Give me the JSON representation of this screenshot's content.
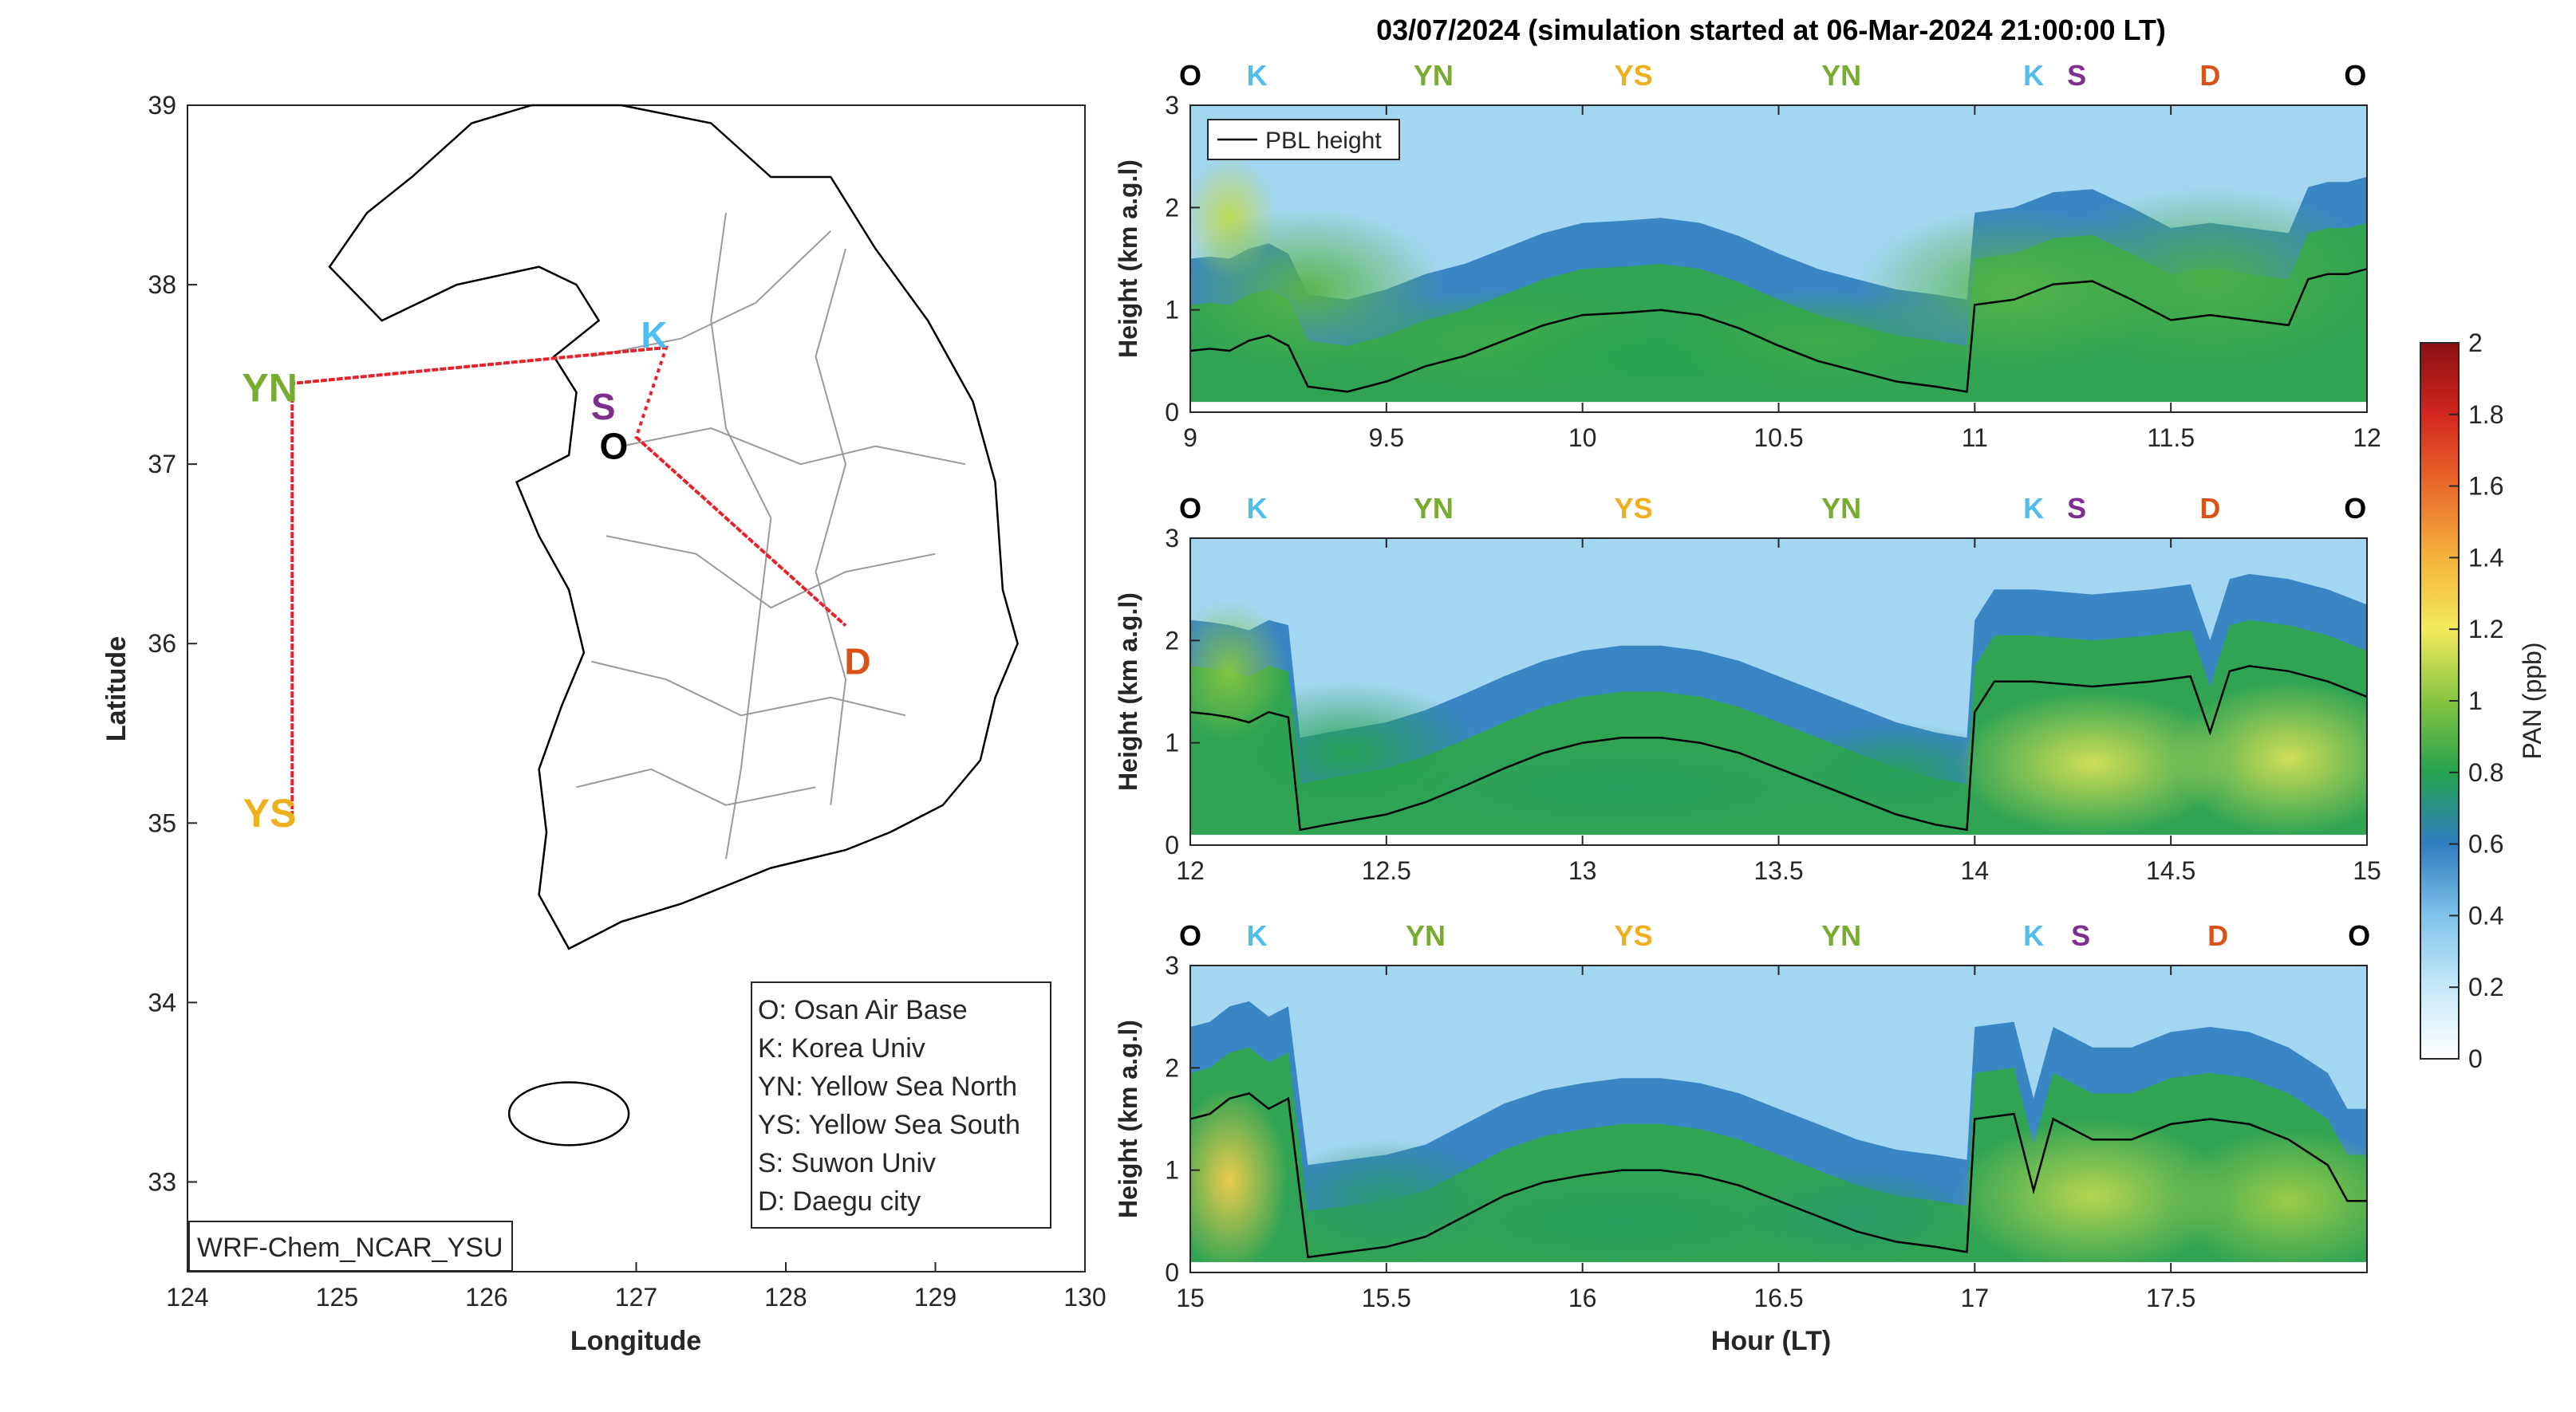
{
  "chart_data": [
    {
      "type": "map",
      "xlabel": "Longitude",
      "ylabel": "Latitude",
      "xlim": [
        124,
        130
      ],
      "ylim": [
        32.5,
        39
      ],
      "x_ticks": [
        "124",
        "125",
        "126",
        "127",
        "128",
        "129",
        "130"
      ],
      "y_ticks": [
        "33",
        "34",
        "35",
        "36",
        "37",
        "38",
        "39"
      ],
      "model_label": "WRF-Chem_NCAR_YSU",
      "sites": [
        {
          "code": "O",
          "lon": 126.85,
          "lat": 37.1,
          "color": "#000000"
        },
        {
          "code": "K",
          "lon": 127.12,
          "lat": 37.72,
          "color": "#4DBEEE"
        },
        {
          "code": "S",
          "lon": 126.78,
          "lat": 37.32,
          "color": "#7E2F8E"
        },
        {
          "code": "YN",
          "lon": 124.55,
          "lat": 37.42,
          "color": "#77AC30"
        },
        {
          "code": "YS",
          "lon": 124.55,
          "lat": 35.05,
          "color": "#EDB120"
        },
        {
          "code": "D",
          "lon": 128.48,
          "lat": 35.9,
          "color": "#D95319"
        }
      ],
      "flight_track": [
        [
          127.2,
          37.65
        ],
        [
          124.7,
          37.45
        ],
        [
          124.7,
          35.05
        ],
        [
          124.7,
          37.45
        ],
        [
          127.2,
          37.65
        ],
        [
          127.0,
          37.15
        ],
        [
          128.4,
          36.1
        ],
        [
          127.0,
          37.15
        ]
      ],
      "legend": [
        "O: Osan Air Base",
        "K: Korea Univ",
        "YN: Yellow Sea North",
        "YS: Yellow Sea South",
        "S: Suwon Univ",
        "D: Daegu city"
      ]
    },
    {
      "type": "heatmap",
      "title": "03/07/2024 (simulation started at 06-Mar-2024 21:00:00 LT)",
      "xlabel": "Hour (LT)",
      "ylabel": "Height (km a.g.l)",
      "ylim": [
        0,
        3
      ],
      "colorbar_label": "PAN (ppb)",
      "colorbar_range": [
        0,
        2
      ],
      "colorbar_ticks": [
        "0",
        "0.2",
        "0.4",
        "0.6",
        "0.8",
        "1",
        "1.2",
        "1.4",
        "1.6",
        "1.8",
        "2"
      ],
      "line_legend": "PBL height",
      "panels": [
        {
          "xlim": [
            9,
            12
          ],
          "x_ticks": [
            "9",
            "9.5",
            "10",
            "10.5",
            "11",
            "11.5",
            "12"
          ],
          "top_labels": [
            {
              "text": "O",
              "x": 9.0
            },
            {
              "text": "K",
              "x": 9.17
            },
            {
              "text": "YN",
              "x": 9.62
            },
            {
              "text": "YS",
              "x": 10.13
            },
            {
              "text": "YN",
              "x": 10.66
            },
            {
              "text": "K",
              "x": 11.15
            },
            {
              "text": "S",
              "x": 11.26
            },
            {
              "text": "D",
              "x": 11.6
            },
            {
              "text": "O",
              "x": 11.97
            }
          ],
          "pbl": [
            [
              9,
              0.6
            ],
            [
              9.05,
              0.62
            ],
            [
              9.1,
              0.6
            ],
            [
              9.15,
              0.7
            ],
            [
              9.2,
              0.75
            ],
            [
              9.25,
              0.65
            ],
            [
              9.3,
              0.25
            ],
            [
              9.4,
              0.2
            ],
            [
              9.5,
              0.3
            ],
            [
              9.6,
              0.45
            ],
            [
              9.7,
              0.55
            ],
            [
              9.8,
              0.7
            ],
            [
              9.9,
              0.85
            ],
            [
              10.0,
              0.95
            ],
            [
              10.1,
              0.97
            ],
            [
              10.2,
              1.0
            ],
            [
              10.3,
              0.95
            ],
            [
              10.4,
              0.82
            ],
            [
              10.5,
              0.65
            ],
            [
              10.6,
              0.5
            ],
            [
              10.7,
              0.4
            ],
            [
              10.8,
              0.3
            ],
            [
              10.9,
              0.25
            ],
            [
              10.98,
              0.2
            ],
            [
              11.0,
              1.05
            ],
            [
              11.1,
              1.1
            ],
            [
              11.2,
              1.25
            ],
            [
              11.3,
              1.28
            ],
            [
              11.4,
              1.1
            ],
            [
              11.5,
              0.9
            ],
            [
              11.6,
              0.95
            ],
            [
              11.7,
              0.9
            ],
            [
              11.8,
              0.85
            ],
            [
              11.85,
              1.3
            ],
            [
              11.9,
              1.35
            ],
            [
              11.95,
              1.35
            ],
            [
              12,
              1.4
            ]
          ],
          "field": [
            {
              "x": 9.1,
              "y": 1.9,
              "rx": 0.12,
              "ry": 0.6,
              "v": 1.1
            },
            {
              "x": 9.3,
              "y": 1.2,
              "rx": 0.35,
              "ry": 0.8,
              "v": 0.9
            },
            {
              "x": 9.8,
              "y": 0.7,
              "rx": 0.45,
              "ry": 0.5,
              "v": 0.85
            },
            {
              "x": 10.2,
              "y": 0.55,
              "rx": 0.45,
              "ry": 0.35,
              "v": 0.8
            },
            {
              "x": 10.6,
              "y": 0.7,
              "rx": 0.4,
              "ry": 0.5,
              "v": 0.85
            },
            {
              "x": 11.1,
              "y": 1.2,
              "rx": 0.4,
              "ry": 0.8,
              "v": 0.9
            },
            {
              "x": 11.6,
              "y": 1.3,
              "rx": 0.45,
              "ry": 0.9,
              "v": 0.88
            }
          ]
        },
        {
          "xlim": [
            12,
            15
          ],
          "x_ticks": [
            "12",
            "12.5",
            "13",
            "13.5",
            "14",
            "14.5",
            "15"
          ],
          "top_labels": [
            {
              "text": "O",
              "x": 12.0
            },
            {
              "text": "K",
              "x": 12.17
            },
            {
              "text": "YN",
              "x": 12.62
            },
            {
              "text": "YS",
              "x": 13.13
            },
            {
              "text": "YN",
              "x": 13.66
            },
            {
              "text": "K",
              "x": 14.15
            },
            {
              "text": "S",
              "x": 14.26
            },
            {
              "text": "D",
              "x": 14.6
            },
            {
              "text": "O",
              "x": 14.97
            }
          ],
          "pbl": [
            [
              12,
              1.3
            ],
            [
              12.05,
              1.28
            ],
            [
              12.1,
              1.25
            ],
            [
              12.15,
              1.2
            ],
            [
              12.2,
              1.3
            ],
            [
              12.25,
              1.25
            ],
            [
              12.28,
              0.15
            ],
            [
              12.35,
              0.2
            ],
            [
              12.5,
              0.3
            ],
            [
              12.6,
              0.42
            ],
            [
              12.7,
              0.58
            ],
            [
              12.8,
              0.75
            ],
            [
              12.9,
              0.9
            ],
            [
              13.0,
              1.0
            ],
            [
              13.1,
              1.05
            ],
            [
              13.2,
              1.05
            ],
            [
              13.3,
              1.0
            ],
            [
              13.4,
              0.9
            ],
            [
              13.5,
              0.75
            ],
            [
              13.6,
              0.6
            ],
            [
              13.7,
              0.45
            ],
            [
              13.8,
              0.3
            ],
            [
              13.9,
              0.2
            ],
            [
              13.98,
              0.15
            ],
            [
              14.0,
              1.3
            ],
            [
              14.05,
              1.6
            ],
            [
              14.15,
              1.6
            ],
            [
              14.3,
              1.55
            ],
            [
              14.45,
              1.6
            ],
            [
              14.55,
              1.65
            ],
            [
              14.6,
              1.1
            ],
            [
              14.65,
              1.7
            ],
            [
              14.7,
              1.75
            ],
            [
              14.8,
              1.7
            ],
            [
              14.9,
              1.6
            ],
            [
              15,
              1.45
            ]
          ],
          "field": [
            {
              "x": 12.1,
              "y": 1.7,
              "rx": 0.15,
              "ry": 0.7,
              "v": 1.0
            },
            {
              "x": 12.4,
              "y": 0.9,
              "rx": 0.35,
              "ry": 0.7,
              "v": 0.8
            },
            {
              "x": 13.1,
              "y": 0.55,
              "rx": 0.6,
              "ry": 0.45,
              "v": 0.78
            },
            {
              "x": 13.8,
              "y": 0.7,
              "rx": 0.3,
              "ry": 0.5,
              "v": 0.78
            },
            {
              "x": 14.3,
              "y": 0.8,
              "rx": 0.35,
              "ry": 0.7,
              "v": 1.15
            },
            {
              "x": 14.8,
              "y": 0.85,
              "rx": 0.3,
              "ry": 0.75,
              "v": 1.15
            }
          ]
        },
        {
          "xlim": [
            15,
            18
          ],
          "x_ticks": [
            "15",
            "15.5",
            "16",
            "16.5",
            "17",
            "17.5"
          ],
          "top_labels": [
            {
              "text": "O",
              "x": 15.0
            },
            {
              "text": "K",
              "x": 15.17
            },
            {
              "text": "YN",
              "x": 15.6
            },
            {
              "text": "YS",
              "x": 16.13
            },
            {
              "text": "YN",
              "x": 16.66
            },
            {
              "text": "K",
              "x": 17.15
            },
            {
              "text": "S",
              "x": 17.27
            },
            {
              "text": "D",
              "x": 17.62
            },
            {
              "text": "O",
              "x": 17.98
            }
          ],
          "pbl": [
            [
              15,
              1.5
            ],
            [
              15.05,
              1.55
            ],
            [
              15.1,
              1.7
            ],
            [
              15.15,
              1.75
            ],
            [
              15.2,
              1.6
            ],
            [
              15.25,
              1.7
            ],
            [
              15.3,
              0.15
            ],
            [
              15.4,
              0.2
            ],
            [
              15.5,
              0.25
            ],
            [
              15.6,
              0.35
            ],
            [
              15.7,
              0.55
            ],
            [
              15.8,
              0.75
            ],
            [
              15.9,
              0.88
            ],
            [
              16.0,
              0.95
            ],
            [
              16.1,
              1.0
            ],
            [
              16.2,
              1.0
            ],
            [
              16.3,
              0.95
            ],
            [
              16.4,
              0.85
            ],
            [
              16.5,
              0.7
            ],
            [
              16.6,
              0.55
            ],
            [
              16.7,
              0.4
            ],
            [
              16.8,
              0.3
            ],
            [
              16.9,
              0.25
            ],
            [
              16.98,
              0.2
            ],
            [
              17.0,
              1.5
            ],
            [
              17.1,
              1.55
            ],
            [
              17.15,
              0.8
            ],
            [
              17.2,
              1.5
            ],
            [
              17.3,
              1.3
            ],
            [
              17.4,
              1.3
            ],
            [
              17.5,
              1.45
            ],
            [
              17.6,
              1.5
            ],
            [
              17.7,
              1.45
            ],
            [
              17.8,
              1.3
            ],
            [
              17.9,
              1.05
            ],
            [
              17.95,
              0.7
            ],
            [
              18,
              0.7
            ]
          ],
          "field": [
            {
              "x": 15.1,
              "y": 0.9,
              "rx": 0.15,
              "ry": 0.9,
              "v": 1.3
            },
            {
              "x": 15.5,
              "y": 0.7,
              "rx": 0.3,
              "ry": 0.6,
              "v": 0.75
            },
            {
              "x": 16.1,
              "y": 0.5,
              "rx": 0.5,
              "ry": 0.45,
              "v": 0.78
            },
            {
              "x": 16.7,
              "y": 0.55,
              "rx": 0.3,
              "ry": 0.45,
              "v": 0.75
            },
            {
              "x": 17.3,
              "y": 0.75,
              "rx": 0.35,
              "ry": 0.75,
              "v": 1.1
            },
            {
              "x": 17.8,
              "y": 0.7,
              "rx": 0.3,
              "ry": 0.7,
              "v": 1.05
            }
          ]
        }
      ]
    }
  ]
}
